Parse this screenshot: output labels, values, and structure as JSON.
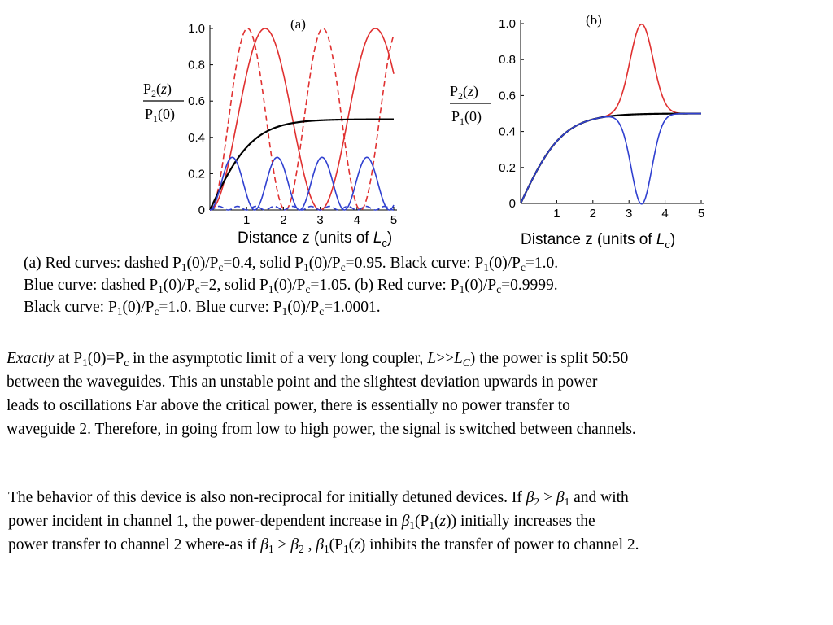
{
  "chart_data": [
    {
      "panel": "(a)",
      "type": "line",
      "xlabel_text": "Distance z (units of ",
      "xlabel_var": "L",
      "xlabel_sub": "c",
      "xlabel_close": ")",
      "ylabel_num": "P2(z)",
      "ylabel_den": "P1(0)",
      "xlim": [
        0,
        5
      ],
      "ylim": [
        0,
        1
      ],
      "x_ticks": [
        "1",
        "2",
        "3",
        "4",
        "5"
      ],
      "y_ticks": [
        "0",
        "0.2",
        "0.4",
        "0.6",
        "0.8",
        "1.0"
      ],
      "series": [
        {
          "color": "#e03030",
          "style": "dashed",
          "model": "sin2",
          "period": 2.05,
          "amplitude": 1.0
        },
        {
          "color": "#e03030",
          "style": "solid",
          "model": "sin2",
          "period": 3.0,
          "amplitude": 1.0
        },
        {
          "color": "#000000",
          "style": "solid",
          "model": "tanh",
          "asymptote": 0.5
        },
        {
          "color": "#3040d0",
          "style": "solid",
          "model": "sin2",
          "period": 1.22,
          "amplitude": 0.29
        },
        {
          "color": "#3040d0",
          "style": "dashed",
          "model": "sin2",
          "period": 0.5,
          "amplitude": 0.02
        }
      ]
    },
    {
      "panel": "(b)",
      "type": "line",
      "xlabel_text": "Distance z (units of ",
      "xlabel_var": "L",
      "xlabel_sub": "c",
      "xlabel_close": ")",
      "ylabel_num": "P2(z)",
      "ylabel_den": "P1(0)",
      "xlim": [
        0,
        5
      ],
      "ylim": [
        0,
        1
      ],
      "x_ticks": [
        "1",
        "2",
        "3",
        "4",
        "5"
      ],
      "y_ticks": [
        "0",
        "0.2",
        "0.4",
        "0.6",
        "0.8",
        "1.0"
      ],
      "series": [
        {
          "color": "#e03030",
          "style": "solid",
          "model": "tanh_peak",
          "asymptote": 0.5,
          "peak_x": 3.35,
          "peak_y": 1.0
        },
        {
          "color": "#000000",
          "style": "solid",
          "model": "tanh",
          "asymptote": 0.5
        },
        {
          "color": "#3040d0",
          "style": "solid",
          "model": "tanh_dip",
          "asymptote": 0.5,
          "dip_x": 3.35,
          "dip_y": 0.0
        }
      ]
    }
  ],
  "caption": {
    "line1": "(a)  Red curves: dashed P1(0)/Pc=0.4, solid P1(0)/Pc=0.95. Black curve: P1(0)/Pc=1.0.",
    "line2": "Blue curve: dashed P1(0)/Pc=2,  solid P1(0)/Pc=1.05. (b) Red curve: P1(0)/Pc=0.9999.",
    "line3": "Black curve: P1(0)/Pc=1.0. Blue curve: P1(0)/Pc=1.0001."
  },
  "paragraph1": {
    "lead": "Exactly",
    "line1_rest": " at P1(0)=Pc in the asymptotic limit of a very long coupler, L>>LC) the power is split 50:50",
    "line2": "between the waveguides. This an unstable point and the slightest deviation upwards in power",
    "line3": "leads to oscillations Far above the critical power, there is essentially no power transfer to",
    "line4": "waveguide 2. Therefore, in going from low to high power, the signal is switched between channels."
  },
  "paragraph2": {
    "line1": "The behavior of this device is also non-reciprocal for initially detuned devices. If β2 > β1 and with",
    "line2": "power incident in channel 1, the power-dependent increase in β1(P1(z)) initially increases the",
    "line3": "power transfer to channel 2 where-as if β1 > β2 ,  β1(P1(z) inhibits the transfer of power to channel 2."
  }
}
